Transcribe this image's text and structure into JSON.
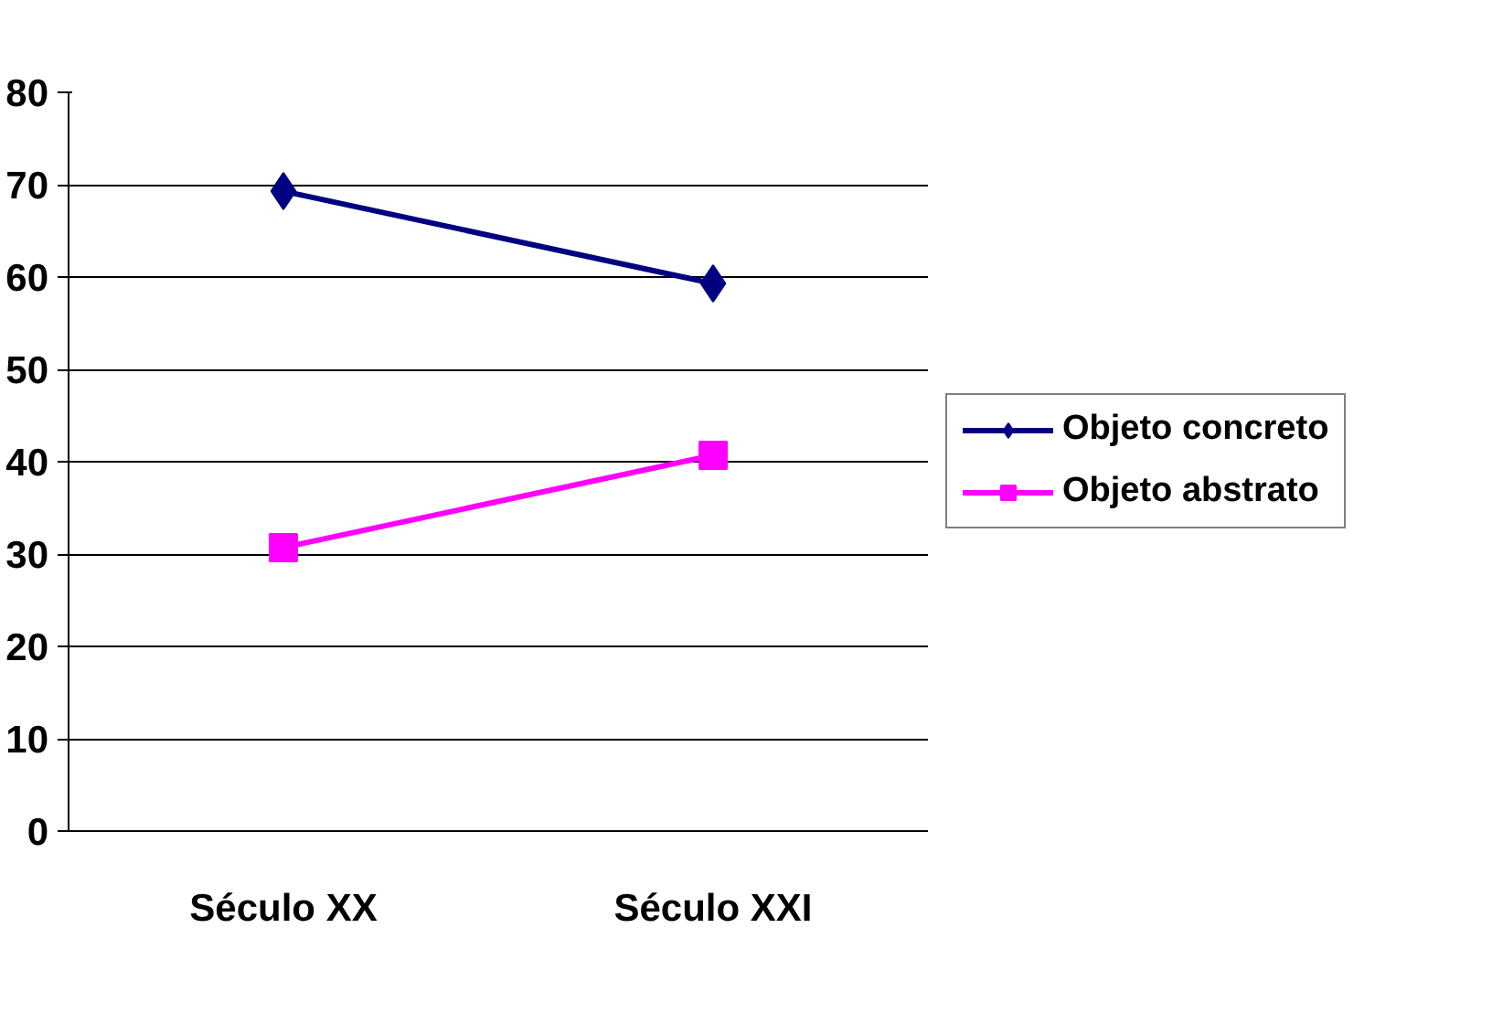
{
  "chart_data": {
    "type": "line",
    "categories": [
      "Século XX",
      "Século XXI"
    ],
    "series": [
      {
        "name": "Objeto concreto",
        "color": "#000080",
        "values": [
          69.3,
          59.3
        ],
        "marker": "diamond"
      },
      {
        "name": "Objeto abstrato",
        "color": "#ff00ff",
        "values": [
          30.7,
          40.7
        ],
        "marker": "square"
      }
    ],
    "ylim": [
      0,
      80
    ],
    "yticks": [
      0,
      10,
      20,
      30,
      40,
      50,
      60,
      70,
      80
    ],
    "grid": "y",
    "legend": "right",
    "line_style": "solid"
  }
}
